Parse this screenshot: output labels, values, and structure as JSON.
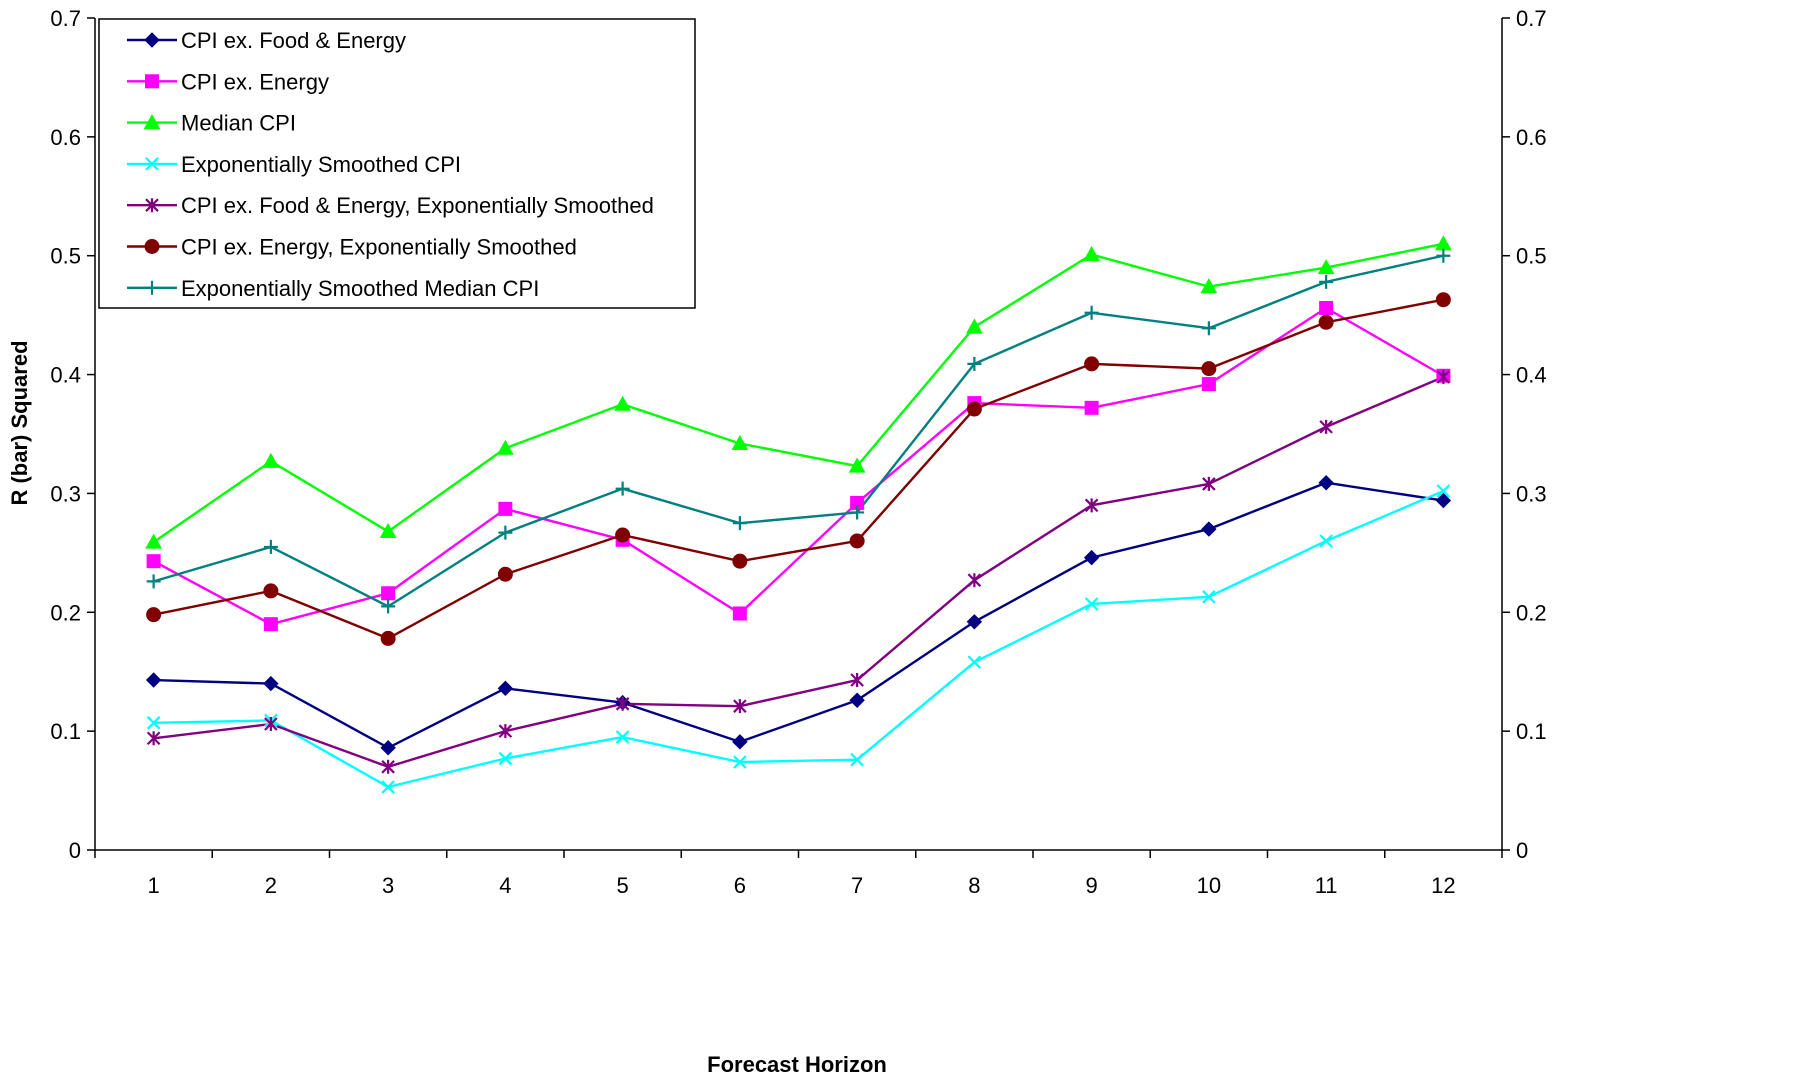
{
  "chart_data": {
    "type": "line",
    "title": "",
    "xlabel": "Forecast Horizon",
    "ylabel": "R (bar) Squared",
    "categories": [
      "1",
      "2",
      "3",
      "4",
      "5",
      "6",
      "7",
      "8",
      "9",
      "10",
      "11",
      "12"
    ],
    "ylim": [
      0,
      0.7
    ],
    "y_ticks": [
      "0",
      "0.1",
      "0.2",
      "0.3",
      "0.4",
      "0.5",
      "0.6",
      "0.7"
    ],
    "secondary_y_axis": true,
    "grid": false,
    "legend_position": "top-left",
    "series": [
      {
        "name": "CPI ex. Food & Energy",
        "color": "#000080",
        "marker": "diamond",
        "values": [
          0.143,
          0.14,
          0.086,
          0.136,
          0.124,
          0.091,
          0.126,
          0.192,
          0.246,
          0.27,
          0.309,
          0.294
        ]
      },
      {
        "name": "CPI ex. Energy",
        "color": "#FF00FF",
        "marker": "square",
        "values": [
          0.243,
          0.19,
          0.216,
          0.287,
          0.261,
          0.199,
          0.292,
          0.376,
          0.372,
          0.392,
          0.456,
          0.399
        ]
      },
      {
        "name": "Median CPI",
        "color": "#00FF00",
        "marker": "triangle",
        "values": [
          0.259,
          0.327,
          0.268,
          0.338,
          0.375,
          0.342,
          0.323,
          0.44,
          0.501,
          0.474,
          0.49,
          0.51
        ]
      },
      {
        "name": "Exponentially Smoothed CPI",
        "color": "#00FFFF",
        "marker": "x",
        "values": [
          0.107,
          0.109,
          0.053,
          0.077,
          0.095,
          0.074,
          0.076,
          0.158,
          0.207,
          0.213,
          0.26,
          0.302
        ]
      },
      {
        "name": "CPI ex. Food & Energy, Exponentially Smoothed",
        "color": "#800080",
        "marker": "star",
        "values": [
          0.094,
          0.106,
          0.07,
          0.1,
          0.123,
          0.121,
          0.143,
          0.227,
          0.29,
          0.308,
          0.356,
          0.398
        ]
      },
      {
        "name": "CPI ex. Energy, Exponentially Smoothed",
        "color": "#800000",
        "marker": "circle",
        "values": [
          0.198,
          0.218,
          0.178,
          0.232,
          0.265,
          0.243,
          0.26,
          0.371,
          0.409,
          0.405,
          0.444,
          0.463
        ]
      },
      {
        "name": "Exponentially Smoothed Median CPI",
        "color": "#008080",
        "marker": "plus",
        "values": [
          0.226,
          0.255,
          0.205,
          0.267,
          0.304,
          0.275,
          0.284,
          0.409,
          0.452,
          0.439,
          0.478,
          0.5
        ]
      }
    ]
  }
}
